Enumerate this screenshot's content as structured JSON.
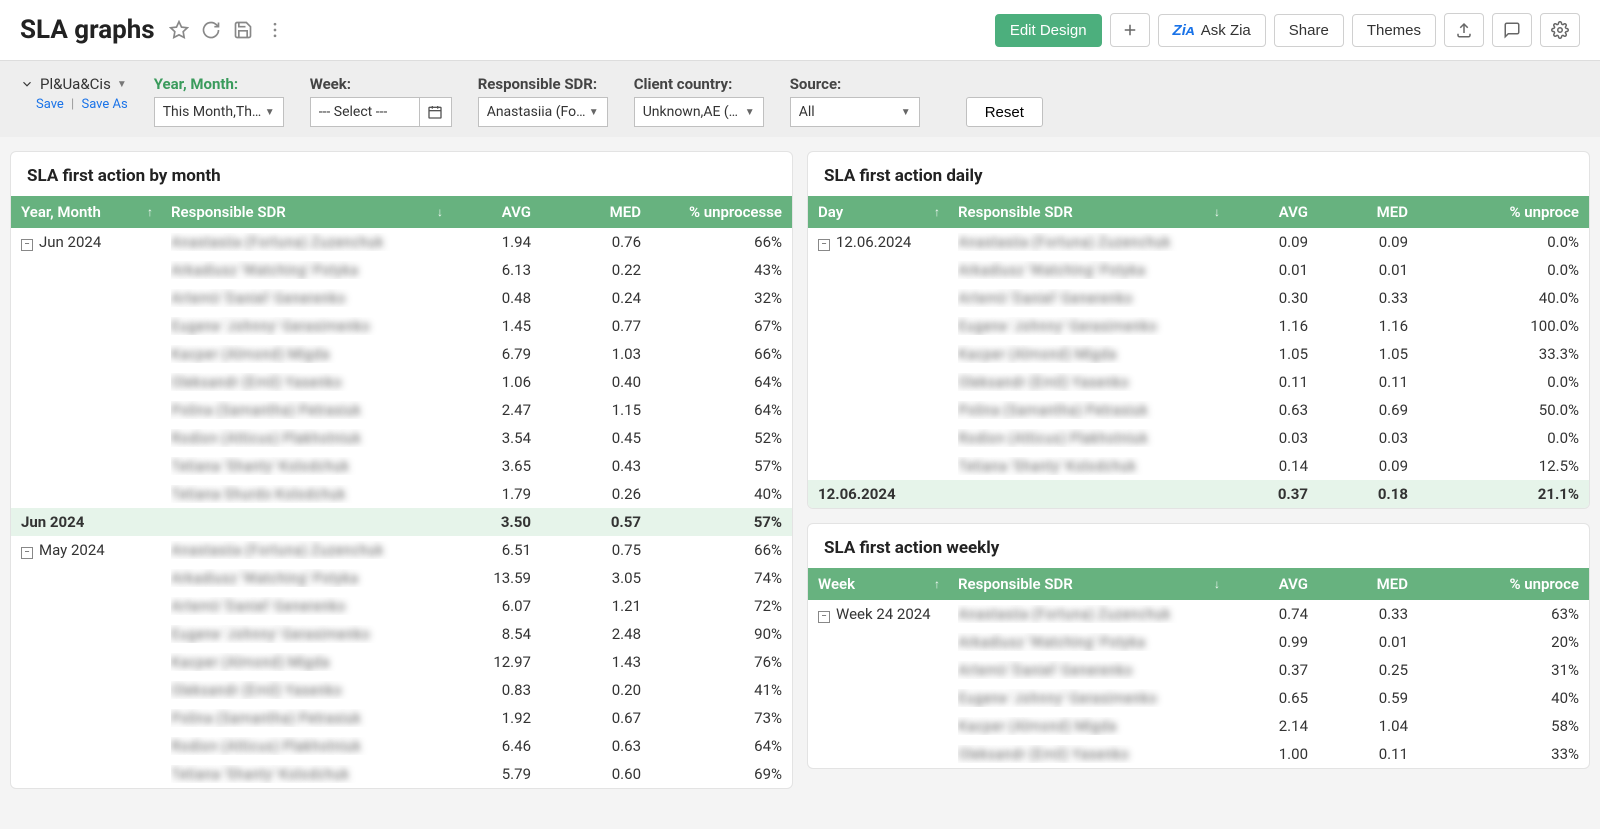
{
  "colors": {
    "accent_green": "#4caf7d",
    "header_green": "#67b27f",
    "subtotal_bg": "#e6f4ea",
    "page_bg": "#f4f4f4",
    "panel_border": "#e3e3e3",
    "link_blue": "#1a73e8"
  },
  "header": {
    "title": "SLA graphs",
    "actions": {
      "edit_design": "Edit Design",
      "ask_zia": "Ask Zia",
      "share": "Share",
      "themes": "Themes"
    }
  },
  "filters": {
    "view_name": "Pl&Ua&Cis",
    "save": "Save",
    "save_as": "Save As",
    "year_month": {
      "label": "Year, Month:",
      "value": "This Month,Th…"
    },
    "week": {
      "label": "Week:",
      "value": "--- Select ---"
    },
    "sdr": {
      "label": "Responsible SDR:",
      "value": "Anastasiia (Fo…"
    },
    "country": {
      "label": "Client country:",
      "value": "Unknown,AE (…"
    },
    "source": {
      "label": "Source:",
      "value": "All"
    },
    "reset": "Reset"
  },
  "panels": {
    "monthly": {
      "title": "SLA first action by month",
      "columns": {
        "c1": "Year, Month",
        "c2": "Responsible SDR",
        "c3": "AVG",
        "c4": "MED",
        "c5": "% unprocesse"
      },
      "col_widths": [
        "150px",
        "290px",
        "90px",
        "110px",
        ""
      ],
      "groups": [
        {
          "label": "Jun 2024",
          "rows": [
            {
              "sdr": "Anastasiia (Fortuna) Zuzenchuk",
              "avg": "1.94",
              "med": "0.76",
              "pct": "66%"
            },
            {
              "sdr": "Arkadiusz 'Watching' Potyka",
              "avg": "6.13",
              "med": "0.22",
              "pct": "43%"
            },
            {
              "sdr": "Artemii 'Daniel' Generenko",
              "avg": "0.48",
              "med": "0.24",
              "pct": "32%"
            },
            {
              "sdr": "Eugene 'Johnny' Gerasimenko",
              "avg": "1.45",
              "med": "0.77",
              "pct": "67%"
            },
            {
              "sdr": "Kacper (Almond) Migda",
              "avg": "6.79",
              "med": "1.03",
              "pct": "66%"
            },
            {
              "sdr": "Oleksandr (Emil) Yasenko",
              "avg": "1.06",
              "med": "0.40",
              "pct": "64%"
            },
            {
              "sdr": "Polina (Samantha) Petrasiuk",
              "avg": "2.47",
              "med": "1.15",
              "pct": "64%"
            },
            {
              "sdr": "Rodion (Atticus) Plakhotniuk",
              "avg": "3.54",
              "med": "0.45",
              "pct": "52%"
            },
            {
              "sdr": "Tetiana 'Shanty' Kolodchuk",
              "avg": "3.65",
              "med": "0.43",
              "pct": "57%"
            },
            {
              "sdr": "Tetiana Shurdo Kolodchuk",
              "avg": "1.79",
              "med": "0.26",
              "pct": "40%"
            }
          ],
          "subtotal": {
            "label": "Jun 2024",
            "avg": "3.50",
            "med": "0.57",
            "pct": "57%"
          }
        },
        {
          "label": "May 2024",
          "rows": [
            {
              "sdr": "Anastasiia (Fortuna) Zuzenchuk",
              "avg": "6.51",
              "med": "0.75",
              "pct": "66%"
            },
            {
              "sdr": "Arkadiusz 'Watching' Potyka",
              "avg": "13.59",
              "med": "3.05",
              "pct": "74%"
            },
            {
              "sdr": "Artemii 'Daniel' Generenko",
              "avg": "6.07",
              "med": "1.21",
              "pct": "72%"
            },
            {
              "sdr": "Eugene 'Johnny' Gerasimenko",
              "avg": "8.54",
              "med": "2.48",
              "pct": "90%"
            },
            {
              "sdr": "Kacper (Almond) Migda",
              "avg": "12.97",
              "med": "1.43",
              "pct": "76%"
            },
            {
              "sdr": "Oleksandr (Emil) Yasenko",
              "avg": "0.83",
              "med": "0.20",
              "pct": "41%"
            },
            {
              "sdr": "Polina (Samantha) Petrasiuk",
              "avg": "1.92",
              "med": "0.67",
              "pct": "73%"
            },
            {
              "sdr": "Rodion (Atticus) Plakhotniuk",
              "avg": "6.46",
              "med": "0.63",
              "pct": "64%"
            },
            {
              "sdr": "Tetiana 'Shanty' Kolodchuk",
              "avg": "5.79",
              "med": "0.60",
              "pct": "69%"
            }
          ]
        }
      ]
    },
    "daily": {
      "title": "SLA first action daily",
      "columns": {
        "c1": "Day",
        "c2": "Responsible SDR",
        "c3": "AVG",
        "c4": "MED",
        "c5": "% unproce"
      },
      "col_widths": [
        "140px",
        "280px",
        "90px",
        "100px",
        ""
      ],
      "groups": [
        {
          "label": "12.06.2024",
          "rows": [
            {
              "sdr": "Anastasiia (Fortuna) Zuzenchuk",
              "avg": "0.09",
              "med": "0.09",
              "pct": "0.0%"
            },
            {
              "sdr": "Arkadiusz 'Watching' Potyka",
              "avg": "0.01",
              "med": "0.01",
              "pct": "0.0%"
            },
            {
              "sdr": "Artemii 'Daniel' Generenko",
              "avg": "0.30",
              "med": "0.33",
              "pct": "40.0%"
            },
            {
              "sdr": "Eugene 'Johnny' Gerasimenko",
              "avg": "1.16",
              "med": "1.16",
              "pct": "100.0%"
            },
            {
              "sdr": "Kacper (Almond) Migda",
              "avg": "1.05",
              "med": "1.05",
              "pct": "33.3%"
            },
            {
              "sdr": "Oleksandr (Emil) Yasenko",
              "avg": "0.11",
              "med": "0.11",
              "pct": "0.0%"
            },
            {
              "sdr": "Polina (Samantha) Petrasiuk",
              "avg": "0.63",
              "med": "0.69",
              "pct": "50.0%"
            },
            {
              "sdr": "Rodion (Atticus) Plakhotniuk",
              "avg": "0.03",
              "med": "0.03",
              "pct": "0.0%"
            },
            {
              "sdr": "Tetiana 'Shanty' Kolodchuk",
              "avg": "0.14",
              "med": "0.09",
              "pct": "12.5%"
            }
          ],
          "subtotal": {
            "label": "12.06.2024",
            "avg": "0.37",
            "med": "0.18",
            "pct": "21.1%"
          }
        }
      ]
    },
    "weekly": {
      "title": "SLA first action weekly",
      "columns": {
        "c1": "Week",
        "c2": "Responsible SDR",
        "c3": "AVG",
        "c4": "MED",
        "c5": "% unproce"
      },
      "col_widths": [
        "140px",
        "280px",
        "90px",
        "100px",
        ""
      ],
      "groups": [
        {
          "label": "Week 24 2024",
          "rows": [
            {
              "sdr": "Anastasiia (Fortuna) Zuzenchuk",
              "avg": "0.74",
              "med": "0.33",
              "pct": "63%"
            },
            {
              "sdr": "Arkadiusz 'Watching' Potyka",
              "avg": "0.99",
              "med": "0.01",
              "pct": "20%"
            },
            {
              "sdr": "Artemii 'Daniel' Generenko",
              "avg": "0.37",
              "med": "0.25",
              "pct": "31%"
            },
            {
              "sdr": "Eugene 'Johnny' Gerasimenko",
              "avg": "0.65",
              "med": "0.59",
              "pct": "40%"
            },
            {
              "sdr": "Kacper (Almond) Migda",
              "avg": "2.14",
              "med": "1.04",
              "pct": "58%"
            },
            {
              "sdr": "Oleksandr (Emil) Yasenko",
              "avg": "1.00",
              "med": "0.11",
              "pct": "33%"
            }
          ]
        }
      ]
    }
  }
}
